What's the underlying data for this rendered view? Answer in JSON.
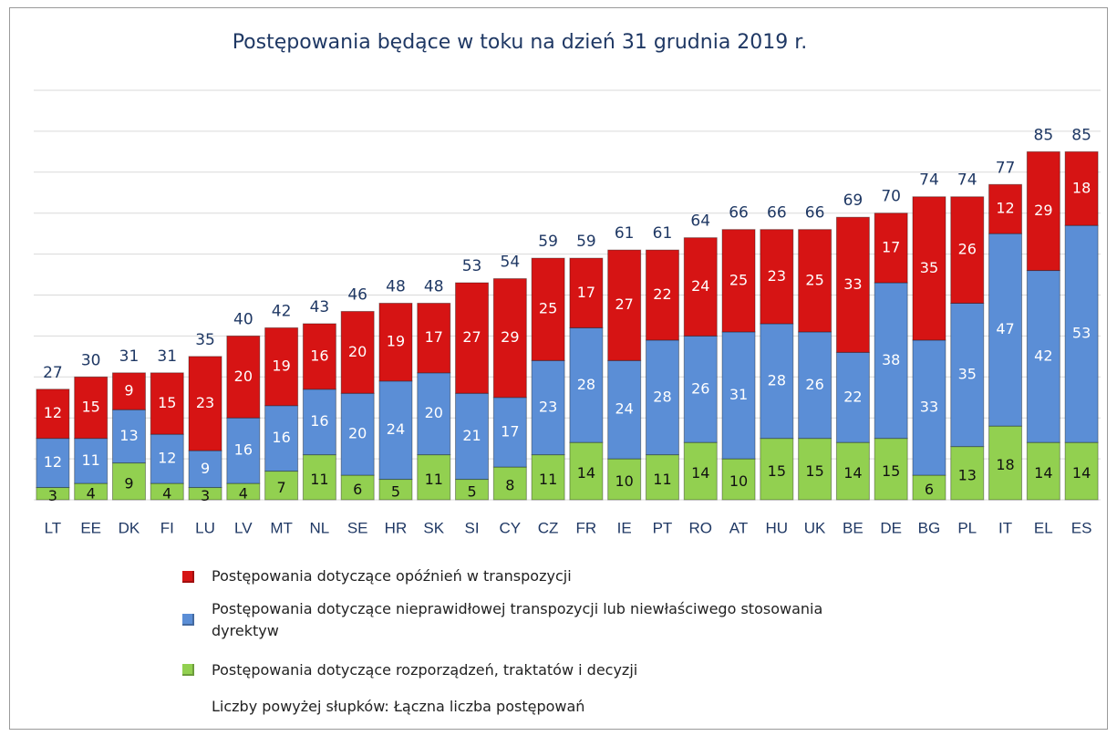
{
  "chart_data": {
    "type": "stacked_bar",
    "title": "Postępowania będące w toku na dzień 31 grudnia 2019 r.",
    "categories": [
      "LT",
      "EE",
      "DK",
      "FI",
      "LU",
      "LV",
      "MT",
      "NL",
      "SE",
      "HR",
      "SK",
      "SI",
      "CY",
      "CZ",
      "FR",
      "IE",
      "PT",
      "RO",
      "AT",
      "HU",
      "UK",
      "BE",
      "DE",
      "BG",
      "PL",
      "IT",
      "EL",
      "ES"
    ],
    "series": [
      {
        "name": "Postępowania dotyczące rozporządzeń, traktatów i decyzji",
        "color": "#92d050",
        "label_color": "#111111",
        "values": [
          3,
          4,
          9,
          4,
          3,
          4,
          7,
          11,
          6,
          5,
          11,
          5,
          8,
          11,
          14,
          10,
          11,
          14,
          10,
          15,
          15,
          14,
          15,
          6,
          13,
          18,
          14,
          14
        ]
      },
      {
        "name": "Postępowania dotyczące nieprawidłowej transpozycji lub niewłaściwego stosowania dyrektyw",
        "color": "#5b8ed6",
        "label_color": "#ffffff",
        "values": [
          12,
          11,
          13,
          12,
          9,
          16,
          16,
          16,
          20,
          24,
          20,
          21,
          17,
          23,
          28,
          24,
          28,
          26,
          31,
          28,
          26,
          22,
          38,
          33,
          35,
          47,
          42,
          53
        ]
      },
      {
        "name": "Postępowania dotyczące opóźnień w transpozycji",
        "color": "#d61414",
        "label_color": "#ffffff",
        "values": [
          12,
          15,
          9,
          15,
          23,
          20,
          19,
          16,
          20,
          19,
          17,
          27,
          29,
          25,
          17,
          27,
          22,
          24,
          25,
          23,
          25,
          33,
          17,
          35,
          26,
          12,
          29,
          18
        ]
      }
    ],
    "totals": [
      27,
      30,
      31,
      31,
      35,
      40,
      42,
      43,
      46,
      48,
      48,
      53,
      54,
      59,
      59,
      61,
      61,
      64,
      66,
      66,
      66,
      69,
      70,
      74,
      74,
      77,
      85,
      85
    ],
    "note": "Liczby powyżej słupków: Łączna liczba postępowań",
    "ylim": [
      0,
      100
    ],
    "yticks": [
      0,
      10,
      20,
      30,
      40,
      50,
      60,
      70,
      80,
      90,
      100
    ],
    "grid": true
  }
}
